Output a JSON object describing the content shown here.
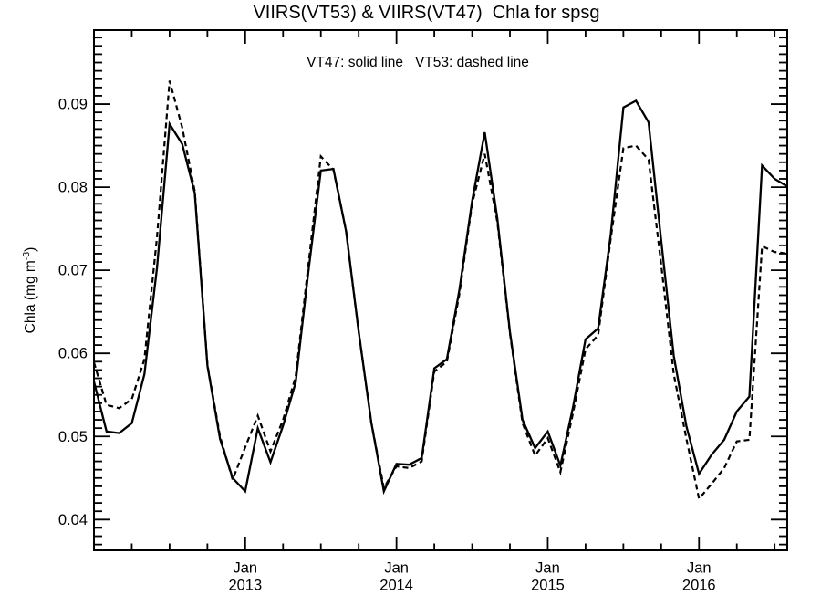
{
  "figure": {
    "title": "VIIRS(VT53) & VIIRS(VT47)  Chla for spsg",
    "annotation": "VT47: solid line   VT53: dashed line",
    "ylabel": {
      "pre": "Chla (mg m",
      "sup": "-3",
      "post": ")"
    }
  },
  "chart_data": {
    "type": "line",
    "title": "VIIRS(VT53) & VIIRS(VT47)  Chla for spsg",
    "subtitle": "VT47: solid line   VT53: dashed line",
    "xlabel": "",
    "ylabel": "Chla (mg m^-3)",
    "grid": false,
    "legend_position": "top-center-inside-text",
    "x_start_month": "2012-01",
    "x_sampling": "monthly",
    "x_axis_range_months": [
      0,
      55
    ],
    "ylim": [
      0.0363,
      0.0989
    ],
    "y_major_ticks": {
      "values": [
        0.04,
        0.05,
        0.06,
        0.07,
        0.08,
        0.09
      ],
      "labels": [
        "0.04",
        "0.05",
        "0.06",
        "0.07",
        "0.08",
        "0.09"
      ]
    },
    "y_minor_tick_step": 0.001,
    "x_major_ticks": [
      {
        "pos_months": 12,
        "line1": "Jan",
        "line2": "2013"
      },
      {
        "pos_months": 24,
        "line1": "Jan",
        "line2": "2014"
      },
      {
        "pos_months": 36,
        "line1": "Jan",
        "line2": "2015"
      },
      {
        "pos_months": 48,
        "line1": "Jan",
        "line2": "2016"
      }
    ],
    "x_minor_tick_step_months": 3,
    "line_color": "#000000",
    "series": [
      {
        "name": "VT47",
        "line_style": "solid",
        "values": [
          0.0566,
          0.0506,
          0.0504,
          0.0516,
          0.0575,
          0.0703,
          0.0876,
          0.0852,
          0.0793,
          0.0585,
          0.0497,
          0.045,
          0.0434,
          0.051,
          0.0469,
          0.0513,
          0.0565,
          0.0697,
          0.082,
          0.0822,
          0.0747,
          0.0626,
          0.0517,
          0.0434,
          0.0467,
          0.0466,
          0.0474,
          0.0582,
          0.0593,
          0.0677,
          0.0783,
          0.0866,
          0.0762,
          0.0626,
          0.052,
          0.0486,
          0.0506,
          0.0465,
          0.0535,
          0.0617,
          0.063,
          0.0743,
          0.0896,
          0.0904,
          0.0878,
          0.0736,
          0.0597,
          0.0512,
          0.0455,
          0.0478,
          0.0496,
          0.053,
          0.0548,
          0.0826,
          0.081,
          0.0801
        ]
      },
      {
        "name": "VT53",
        "line_style": "dashed",
        "values": [
          0.0589,
          0.0538,
          0.0534,
          0.0545,
          0.0593,
          0.074,
          0.0928,
          0.0872,
          0.0795,
          0.0586,
          0.05,
          0.0448,
          0.0487,
          0.0525,
          0.0482,
          0.052,
          0.0572,
          0.0705,
          0.0837,
          0.0821,
          0.0747,
          0.0626,
          0.0517,
          0.0438,
          0.0464,
          0.0462,
          0.047,
          0.0578,
          0.059,
          0.0672,
          0.078,
          0.084,
          0.0758,
          0.0624,
          0.0516,
          0.0477,
          0.0498,
          0.0457,
          0.0528,
          0.0605,
          0.0622,
          0.0738,
          0.0847,
          0.085,
          0.0833,
          0.0707,
          0.0575,
          0.0497,
          0.0425,
          0.0443,
          0.0462,
          0.0494,
          0.0496,
          0.0729,
          0.0722,
          0.072
        ]
      }
    ]
  }
}
